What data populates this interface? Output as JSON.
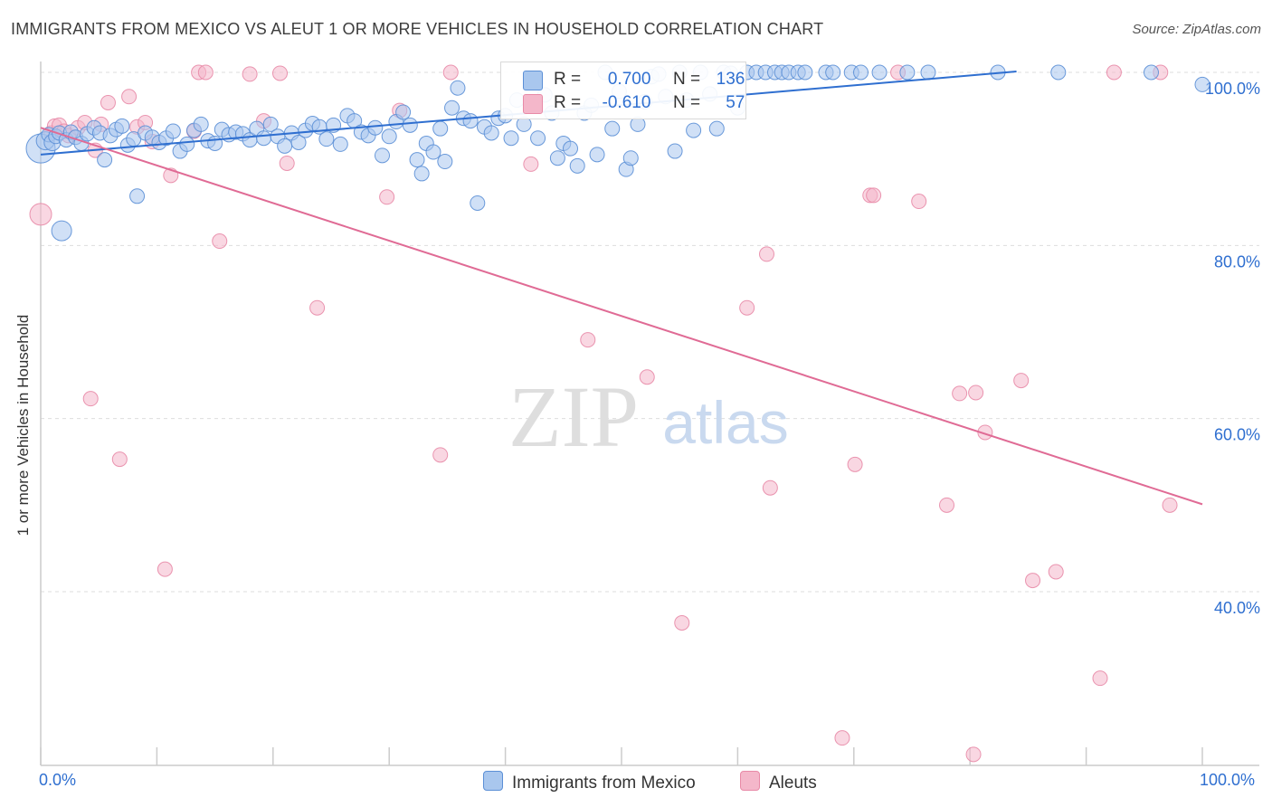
{
  "title": "IMMIGRANTS FROM MEXICO VS ALEUT 1 OR MORE VEHICLES IN HOUSEHOLD CORRELATION CHART",
  "source": "Source: ZipAtlas.com",
  "watermark": {
    "zip": "ZIP",
    "atlas": "atlas"
  },
  "legend": {
    "r_label": "R =",
    "n_label": "N =",
    "series1": {
      "r": "0.700",
      "n": "136"
    },
    "series2": {
      "r": "-0.610",
      "n": "57"
    }
  },
  "bottom_legend": {
    "series1": "Immigrants from Mexico",
    "series2": "Aleuts"
  },
  "colors": {
    "blue_fill": "#a9c7ee",
    "blue_stroke": "#5b8fd6",
    "blue_line": "#2f6fd0",
    "pink_fill": "#f4b7ca",
    "pink_stroke": "#e88aa7",
    "pink_line": "#e06b95",
    "grid": "#dddddd",
    "axis_label": "#2f6fd0"
  },
  "chart_data": {
    "type": "scatter",
    "title": "IMMIGRANTS FROM MEXICO VS ALEUT 1 OR MORE VEHICLES IN HOUSEHOLD CORRELATION CHART",
    "xlabel": "",
    "ylabel": "1 or more Vehicles in Household",
    "xlim": [
      0,
      105
    ],
    "ylim": [
      20,
      102
    ],
    "x_tick_labels": [
      {
        "value": 0,
        "label": "0.0%"
      },
      {
        "value": 100,
        "label": "100.0%"
      }
    ],
    "y_tick_labels": [
      {
        "value": 100,
        "label": "100.0%"
      },
      {
        "value": 80,
        "label": "80.0%"
      },
      {
        "value": 60,
        "label": "60.0%"
      },
      {
        "value": 40,
        "label": "40.0%"
      }
    ],
    "series": [
      {
        "name": "Immigrants from Mexico",
        "color": "#5b8fd6",
        "trend": {
          "x": [
            0,
            84
          ],
          "y": [
            90.5,
            100.1
          ]
        },
        "points": [
          [
            0,
            91.2,
            16
          ],
          [
            0.4,
            92.1,
            10
          ],
          [
            0.7,
            92.8,
            8
          ],
          [
            1.0,
            91.9,
            9
          ],
          [
            1.3,
            92.6,
            8
          ],
          [
            1.6,
            93.0,
            8
          ],
          [
            1.8,
            81.7,
            11
          ],
          [
            2.2,
            92.2,
            8
          ],
          [
            2.6,
            93.1,
            8
          ],
          [
            3.0,
            92.5,
            8
          ],
          [
            3.5,
            91.8,
            8
          ],
          [
            4.0,
            92.9,
            8
          ],
          [
            4.6,
            93.6,
            8
          ],
          [
            5.1,
            93.0,
            8
          ],
          [
            5.5,
            89.9,
            8
          ],
          [
            6.0,
            92.7,
            8
          ],
          [
            6.5,
            93.4,
            8
          ],
          [
            7.0,
            93.8,
            8
          ],
          [
            7.5,
            91.6,
            8
          ],
          [
            8.0,
            92.3,
            8
          ],
          [
            8.3,
            85.7,
            8
          ],
          [
            9.0,
            93.0,
            8
          ],
          [
            9.6,
            92.5,
            8
          ],
          [
            10.2,
            91.9,
            8
          ],
          [
            10.8,
            92.4,
            8
          ],
          [
            11.4,
            93.2,
            8
          ],
          [
            12.0,
            90.9,
            8
          ],
          [
            12.6,
            91.7,
            8
          ],
          [
            13.2,
            93.3,
            8
          ],
          [
            13.8,
            94.0,
            8
          ],
          [
            14.4,
            92.1,
            8
          ],
          [
            15.0,
            91.8,
            8
          ],
          [
            15.6,
            93.4,
            8
          ],
          [
            16.2,
            92.8,
            8
          ],
          [
            16.8,
            93.1,
            8
          ],
          [
            17.4,
            92.9,
            8
          ],
          [
            18.0,
            92.2,
            8
          ],
          [
            18.6,
            93.5,
            8
          ],
          [
            19.2,
            92.4,
            8
          ],
          [
            19.8,
            94.0,
            8
          ],
          [
            20.4,
            92.6,
            8
          ],
          [
            21.0,
            91.5,
            8
          ],
          [
            21.6,
            93.0,
            8
          ],
          [
            22.2,
            91.9,
            8
          ],
          [
            22.8,
            93.3,
            8
          ],
          [
            23.4,
            94.1,
            8
          ],
          [
            24.0,
            93.7,
            8
          ],
          [
            24.6,
            92.3,
            8
          ],
          [
            25.2,
            93.9,
            8
          ],
          [
            25.8,
            91.7,
            8
          ],
          [
            26.4,
            95.0,
            8
          ],
          [
            27.0,
            94.4,
            8
          ],
          [
            27.6,
            93.1,
            8
          ],
          [
            28.2,
            92.7,
            8
          ],
          [
            28.8,
            93.6,
            8
          ],
          [
            29.4,
            90.4,
            8
          ],
          [
            30.0,
            92.6,
            8
          ],
          [
            30.6,
            94.3,
            8
          ],
          [
            31.2,
            95.4,
            8
          ],
          [
            31.8,
            93.9,
            8
          ],
          [
            32.4,
            89.9,
            8
          ],
          [
            32.8,
            88.3,
            8
          ],
          [
            33.2,
            91.8,
            8
          ],
          [
            33.8,
            90.8,
            8
          ],
          [
            34.4,
            93.5,
            8
          ],
          [
            34.8,
            89.7,
            8
          ],
          [
            35.4,
            95.9,
            8
          ],
          [
            35.9,
            98.2,
            8
          ],
          [
            36.4,
            94.7,
            8
          ],
          [
            37.0,
            94.4,
            8
          ],
          [
            37.6,
            84.9,
            8
          ],
          [
            38.2,
            93.7,
            8
          ],
          [
            38.8,
            93.0,
            8
          ],
          [
            39.4,
            94.7,
            8
          ],
          [
            40.0,
            95.0,
            8
          ],
          [
            40.5,
            92.4,
            8
          ],
          [
            41.0,
            96.8,
            8
          ],
          [
            41.6,
            94.0,
            8
          ],
          [
            42.2,
            96.3,
            8
          ],
          [
            42.8,
            92.4,
            8
          ],
          [
            43.4,
            97.4,
            8
          ],
          [
            44.0,
            95.3,
            8
          ],
          [
            44.5,
            90.1,
            8
          ],
          [
            45.0,
            91.8,
            8
          ],
          [
            45.6,
            91.2,
            8
          ],
          [
            46.2,
            89.2,
            8
          ],
          [
            46.8,
            95.3,
            8
          ],
          [
            47.4,
            96.2,
            8
          ],
          [
            47.9,
            90.5,
            8
          ],
          [
            48.6,
            100.0,
            8
          ],
          [
            49.2,
            93.5,
            8
          ],
          [
            49.8,
            97.8,
            8
          ],
          [
            50.4,
            88.8,
            8
          ],
          [
            50.8,
            90.1,
            8
          ],
          [
            51.4,
            94.0,
            8
          ],
          [
            52.0,
            96.6,
            8
          ],
          [
            52.6,
            99.5,
            8
          ],
          [
            53.2,
            99.8,
            8
          ],
          [
            53.8,
            97.2,
            8
          ],
          [
            54.6,
            90.9,
            8
          ],
          [
            55.0,
            100.0,
            8
          ],
          [
            55.6,
            96.8,
            8
          ],
          [
            56.2,
            93.3,
            8
          ],
          [
            56.8,
            100.0,
            8
          ],
          [
            57.6,
            97.5,
            8
          ],
          [
            58.2,
            93.5,
            8
          ],
          [
            58.8,
            100.0,
            8
          ],
          [
            59.4,
            99.9,
            8
          ],
          [
            60.0,
            95.9,
            8
          ],
          [
            60.8,
            100.0,
            8
          ],
          [
            61.6,
            100.0,
            8
          ],
          [
            62.4,
            100.0,
            8
          ],
          [
            63.2,
            100.0,
            8
          ],
          [
            63.8,
            100.0,
            8
          ],
          [
            64.4,
            100.0,
            8
          ],
          [
            65.2,
            100.0,
            8
          ],
          [
            65.8,
            100.0,
            8
          ],
          [
            67.6,
            100.0,
            8
          ],
          [
            68.2,
            100.0,
            8
          ],
          [
            69.8,
            100.0,
            8
          ],
          [
            70.6,
            100.0,
            8
          ],
          [
            72.2,
            100.0,
            8
          ],
          [
            74.6,
            100.0,
            8
          ],
          [
            76.4,
            100.0,
            8
          ],
          [
            82.4,
            100.0,
            8
          ],
          [
            87.6,
            100.0,
            8
          ],
          [
            95.6,
            100.0,
            8
          ],
          [
            100.0,
            98.6,
            8
          ]
        ]
      },
      {
        "name": "Aleuts",
        "color": "#e88aa7",
        "trend": {
          "x": [
            0,
            100
          ],
          "y": [
            93.6,
            50.1
          ]
        },
        "points": [
          [
            0,
            83.6,
            12
          ],
          [
            0.9,
            93.0,
            8
          ],
          [
            1.2,
            93.8,
            8
          ],
          [
            1.6,
            93.9,
            8
          ],
          [
            2.0,
            93.2,
            8
          ],
          [
            2.4,
            92.7,
            8
          ],
          [
            3.2,
            93.6,
            8
          ],
          [
            3.8,
            94.2,
            8
          ],
          [
            4.3,
            62.3,
            8
          ],
          [
            4.7,
            91.0,
            8
          ],
          [
            5.2,
            94.0,
            8
          ],
          [
            5.8,
            96.5,
            8
          ],
          [
            6.8,
            55.3,
            8
          ],
          [
            7.6,
            97.2,
            8
          ],
          [
            8.3,
            93.7,
            8
          ],
          [
            9.0,
            94.2,
            8
          ],
          [
            9.6,
            92.0,
            8
          ],
          [
            10.7,
            42.6,
            8
          ],
          [
            11.2,
            88.1,
            8
          ],
          [
            13.2,
            93.2,
            8
          ],
          [
            13.6,
            100.0,
            8
          ],
          [
            14.2,
            100.0,
            8
          ],
          [
            15.4,
            80.5,
            8
          ],
          [
            18.0,
            99.8,
            8
          ],
          [
            19.2,
            94.4,
            8
          ],
          [
            20.6,
            99.9,
            8
          ],
          [
            21.2,
            89.5,
            8
          ],
          [
            23.8,
            72.8,
            8
          ],
          [
            29.8,
            85.6,
            8
          ],
          [
            30.9,
            95.6,
            8
          ],
          [
            34.4,
            55.8,
            8
          ],
          [
            35.3,
            100.0,
            8
          ],
          [
            42.2,
            89.4,
            8
          ],
          [
            47.1,
            69.1,
            8
          ],
          [
            52.2,
            64.8,
            8
          ],
          [
            55.2,
            36.4,
            8
          ],
          [
            60.8,
            72.8,
            8
          ],
          [
            62.5,
            79.0,
            8
          ],
          [
            62.8,
            52.0,
            8
          ],
          [
            69.0,
            23.1,
            8
          ],
          [
            70.1,
            54.7,
            8
          ],
          [
            71.4,
            85.8,
            8
          ],
          [
            71.7,
            85.8,
            8
          ],
          [
            75.6,
            85.1,
            8
          ],
          [
            78.0,
            50.0,
            8
          ],
          [
            79.1,
            62.9,
            8
          ],
          [
            80.3,
            21.2,
            8
          ],
          [
            80.5,
            63.0,
            8
          ],
          [
            81.3,
            58.4,
            8
          ],
          [
            84.4,
            64.4,
            8
          ],
          [
            85.4,
            41.3,
            8
          ],
          [
            87.4,
            42.3,
            8
          ],
          [
            91.2,
            30.0,
            8
          ],
          [
            97.2,
            50.0,
            8
          ],
          [
            92.4,
            100.0,
            8
          ],
          [
            96.4,
            100.0,
            8
          ],
          [
            73.8,
            100.0,
            8
          ]
        ]
      }
    ]
  }
}
